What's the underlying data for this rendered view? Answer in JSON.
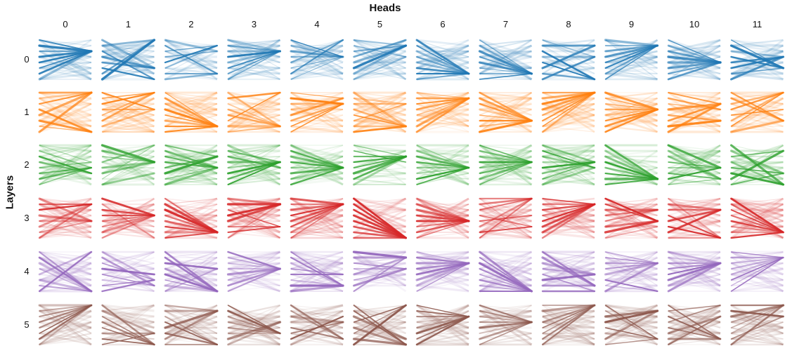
{
  "chart_data": {
    "type": "attention-pattern-grid",
    "title": "Heads",
    "ylabel": "Layers",
    "heads": [
      "0",
      "1",
      "2",
      "3",
      "4",
      "5",
      "6",
      "7",
      "8",
      "9",
      "10",
      "11"
    ],
    "layers": [
      "0",
      "1",
      "2",
      "3",
      "4",
      "5"
    ],
    "layer_colors": [
      "#1f77b4",
      "#ff7f0e",
      "#2ca02c",
      "#d62728",
      "#9467bd",
      "#8c564b"
    ]
  }
}
